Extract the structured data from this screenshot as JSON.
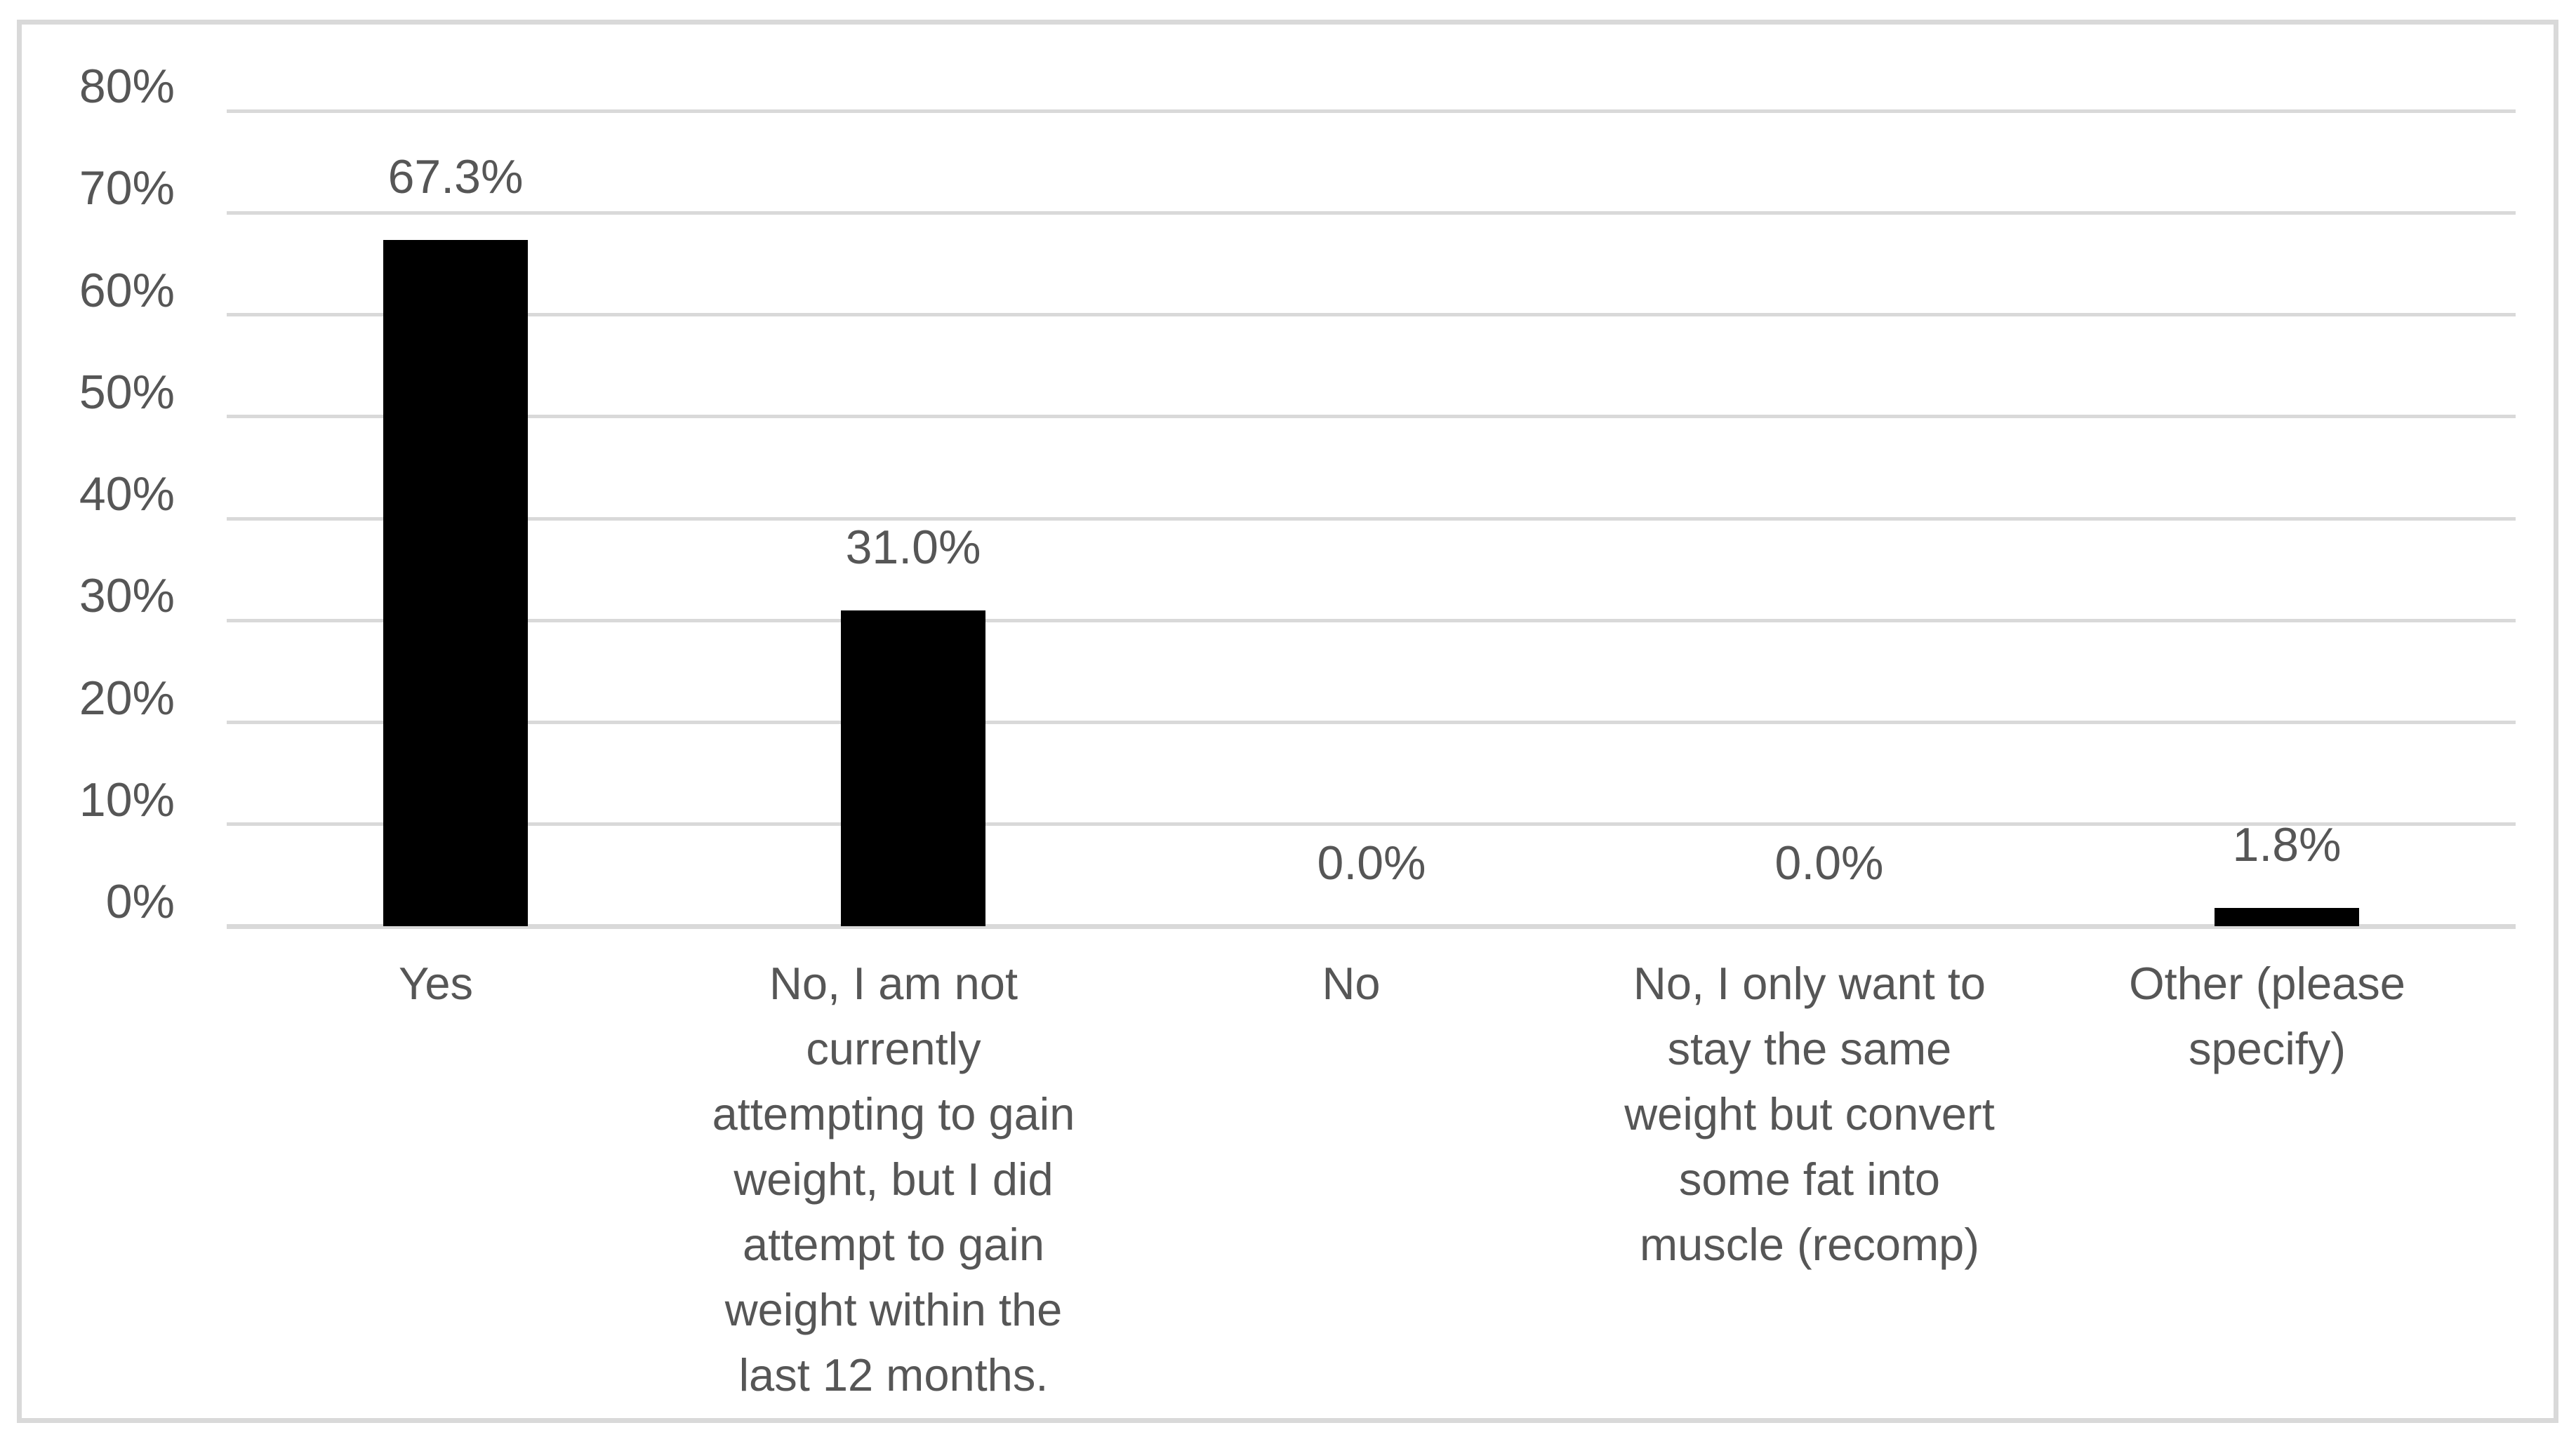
{
  "chart_data": {
    "type": "bar",
    "title": "",
    "xlabel": "",
    "ylabel": "",
    "categories": [
      "Yes",
      "No, I am not currently attempting to gain weight, but I did attempt to gain weight within the last 12 months.",
      "No",
      "No, I only want to stay the same weight but convert some fat into muscle (recomp)",
      "Other (please specify)"
    ],
    "category_display_lines": [
      [
        "Yes"
      ],
      [
        "No, I am not",
        "currently",
        "attempting to gain",
        "weight, but I did",
        "attempt to gain",
        "weight within the",
        "last 12 months."
      ],
      [
        "No"
      ],
      [
        "No, I only want to",
        "stay the same",
        "weight but convert",
        "some fat into",
        "muscle (recomp)"
      ],
      [
        "Other (please",
        "specify)"
      ]
    ],
    "values": [
      67.3,
      31.0,
      0.0,
      0.0,
      1.8
    ],
    "data_labels": [
      "67.3%",
      "31.0%",
      "0.0%",
      "0.0%",
      "1.8%"
    ],
    "y_ticks": [
      "0%",
      "10%",
      "20%",
      "30%",
      "40%",
      "50%",
      "60%",
      "70%",
      "80%"
    ],
    "y_tick_values": [
      0,
      10,
      20,
      30,
      40,
      50,
      60,
      70,
      80
    ],
    "ylim": [
      0,
      80
    ],
    "grid": true,
    "legend": "none",
    "colors": {
      "bar": "#000000",
      "gridline": "#d9d9d9",
      "frame_border": "#d9d9d9",
      "text": "#565656",
      "background": "#ffffff"
    }
  }
}
